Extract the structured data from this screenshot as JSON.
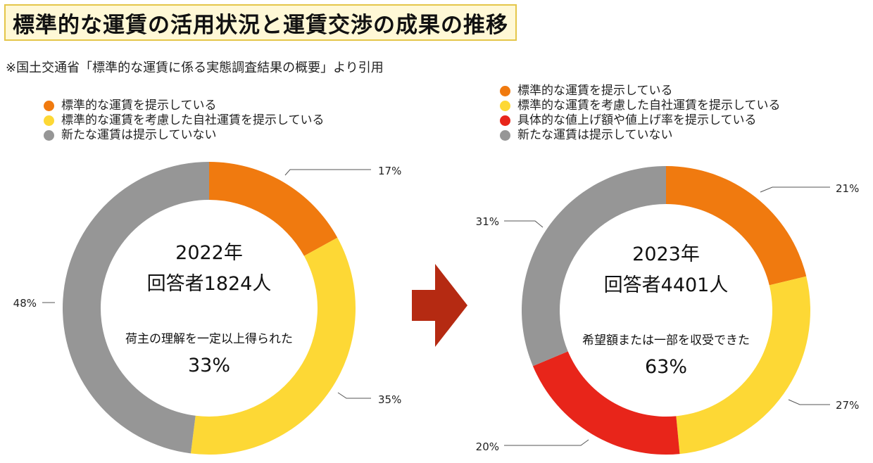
{
  "title": "標準的な運賃の活用状況と運賃交渉の成果の推移",
  "source": "※国土交通省「標準的な運賃に係る実態調査結果の概要」より引用",
  "colors": {
    "orange": "#f07a0f",
    "yellow": "#fdd835",
    "red": "#e8251a",
    "gray": "#969696",
    "arrow": "#b52a12"
  },
  "chart_data": [
    {
      "type": "pie",
      "subtype": "donut",
      "year_label": "2022年",
      "respondents_label": "回答者1824人",
      "note_label": "荷主の理解を一定以上得られた",
      "note_value": "33%",
      "legend": [
        {
          "label": "標準的な運賃を提示している",
          "color": "#f07a0f"
        },
        {
          "label": "標準的な運賃を考慮した自社運賃を提示している",
          "color": "#fdd835"
        },
        {
          "label": "新たな運賃は提示していない",
          "color": "#969696"
        }
      ],
      "slices": [
        {
          "label": "標準的な運賃を提示している",
          "value": 17,
          "display": "17%",
          "color": "#f07a0f"
        },
        {
          "label": "標準的な運賃を考慮した自社運賃を提示している",
          "value": 35,
          "display": "35%",
          "color": "#fdd835"
        },
        {
          "label": "新たな運賃は提示していない",
          "value": 48,
          "display": "48%",
          "color": "#969696"
        }
      ]
    },
    {
      "type": "pie",
      "subtype": "donut",
      "year_label": "2023年",
      "respondents_label": "回答者4401人",
      "note_label": "希望額または一部を収受できた",
      "note_value": "63%",
      "legend": [
        {
          "label": "標準的な運賃を提示している",
          "color": "#f07a0f"
        },
        {
          "label": "標準的な運賃を考慮した自社運賃を提示している",
          "color": "#fdd835"
        },
        {
          "label": "具体的な値上げ額や値上げ率を提示している",
          "color": "#e8251a"
        },
        {
          "label": "新たな運賃は提示していない",
          "color": "#969696"
        }
      ],
      "slices": [
        {
          "label": "標準的な運賃を提示している",
          "value": 21,
          "display": "21%",
          "color": "#f07a0f"
        },
        {
          "label": "標準的な運賃を考慮した自社運賃を提示している",
          "value": 27,
          "display": "27%",
          "color": "#fdd835"
        },
        {
          "label": "具体的な値上げ額や値上げ率を提示している",
          "value": 20,
          "display": "20%",
          "color": "#e8251a"
        },
        {
          "label": "新たな運賃は提示していない",
          "value": 31,
          "display": "31%",
          "color": "#969696"
        }
      ]
    }
  ]
}
